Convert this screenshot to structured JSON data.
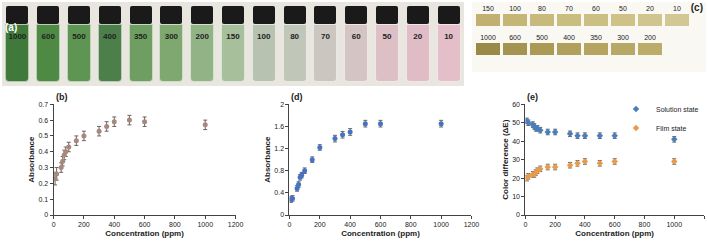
{
  "chart_data": [
    {
      "type": "scatter",
      "title": "(b)",
      "x_label": "Concentration (ppm)",
      "y_label": "Absorbance",
      "x": [
        10,
        20,
        50,
        60,
        70,
        80,
        100,
        150,
        200,
        300,
        350,
        400,
        500,
        600,
        1000
      ],
      "series": [
        {
          "name": "Absorbance",
          "color": "#a8887a",
          "marker": "circle",
          "values": [
            0.23,
            0.26,
            0.3,
            0.34,
            0.38,
            0.4,
            0.43,
            0.47,
            0.5,
            0.53,
            0.56,
            0.59,
            0.6,
            0.59,
            0.57
          ],
          "error": [
            0.04,
            0.04,
            0.03,
            0.03,
            0.03,
            0.03,
            0.03,
            0.03,
            0.03,
            0.03,
            0.03,
            0.03,
            0.03,
            0.03,
            0.03
          ]
        }
      ],
      "xlim": [
        0,
        1200
      ],
      "xticks": [
        0,
        200,
        400,
        600,
        800,
        1000,
        1200
      ],
      "ylim": [
        0,
        0.7
      ],
      "yticks": [
        0,
        0.1,
        0.2,
        0.3,
        0.4,
        0.5,
        0.6,
        0.7
      ],
      "grid": false
    },
    {
      "type": "scatter",
      "title": "(d)",
      "x_label": "Concentration (ppm)",
      "y_label": "Absorbance",
      "x": [
        10,
        20,
        50,
        60,
        70,
        80,
        100,
        150,
        200,
        300,
        350,
        400,
        500,
        600,
        1000
      ],
      "series": [
        {
          "name": "Absorbance",
          "color": "#4472c4",
          "marker": "circle",
          "values": [
            0.28,
            0.3,
            0.48,
            0.55,
            0.68,
            0.72,
            0.8,
            1.0,
            1.22,
            1.38,
            1.45,
            1.5,
            1.65,
            1.65,
            1.65
          ],
          "error": [
            0.05,
            0.05,
            0.05,
            0.05,
            0.05,
            0.05,
            0.05,
            0.05,
            0.05,
            0.06,
            0.06,
            0.06,
            0.06,
            0.06,
            0.06
          ]
        }
      ],
      "xlim": [
        0,
        1200
      ],
      "xticks": [
        0,
        200,
        400,
        600,
        800,
        1000,
        1200
      ],
      "ylim": [
        0,
        2
      ],
      "yticks": [
        0,
        0.4,
        0.8,
        1.2,
        1.6,
        2
      ],
      "grid": false
    },
    {
      "type": "scatter",
      "title": "(e)",
      "x_label": "Concentration (ppm)",
      "y_label": "Color difference (ΔE)",
      "x": [
        10,
        20,
        50,
        60,
        70,
        80,
        100,
        150,
        200,
        300,
        350,
        400,
        500,
        600,
        1000
      ],
      "series": [
        {
          "name": "Solution state",
          "color": "#4a7ebb",
          "marker": "diamond",
          "values": [
            51,
            50,
            49,
            48,
            47,
            47,
            46,
            45,
            45,
            44,
            43,
            43,
            43,
            43,
            41
          ],
          "error": [
            1.5,
            1.5,
            1.5,
            1.5,
            1.5,
            1.5,
            1.5,
            1.5,
            1.5,
            1.5,
            1.5,
            1.5,
            1.5,
            1.5,
            1.5
          ]
        },
        {
          "name": "Film state",
          "color": "#e69a4a",
          "marker": "diamond",
          "values": [
            20,
            21,
            22,
            22,
            23,
            24,
            25,
            26,
            26,
            27,
            28,
            29,
            28,
            29,
            29
          ],
          "error": [
            1.5,
            1.5,
            1.5,
            1.5,
            1.5,
            1.5,
            1.5,
            1.5,
            1.5,
            1.5,
            1.5,
            1.5,
            1.5,
            1.5,
            1.5
          ]
        }
      ],
      "xlim": [
        0,
        1200
      ],
      "xticks": [
        0,
        200,
        400,
        600,
        800,
        1000,
        1200
      ],
      "ylim": [
        0,
        60
      ],
      "yticks": [
        0,
        10,
        20,
        30,
        40,
        50,
        60
      ],
      "grid": false,
      "legend": "top right"
    }
  ],
  "photos": [
    {
      "label": "(a)",
      "items": [
        "1000",
        "600",
        "500",
        "400",
        "350",
        "300",
        "200",
        "150",
        "100",
        "80",
        "70",
        "60",
        "50",
        "20",
        "10"
      ],
      "colors": [
        "#3f7a3a",
        "#4f8a45",
        "#5e9552",
        "#4d7f4a",
        "#6f9e62",
        "#7fa870",
        "#92b386",
        "#a8bf9c",
        "#b8c2b0",
        "#c0c6b8",
        "#cbc6c0",
        "#d4c4c4",
        "#dcc0c6",
        "#e0bcc6",
        "#e4bfca"
      ]
    },
    {
      "label": "(c)",
      "rows": [
        [
          "150",
          "100",
          "80",
          "70",
          "60",
          "50",
          "20",
          "10"
        ],
        [
          "1000",
          "600",
          "500",
          "400",
          "350",
          "300",
          "200"
        ]
      ],
      "colors": [
        [
          "#c2b070",
          "#c6b676",
          "#c8b97c",
          "#cabd80",
          "#ccbf84",
          "#cec288",
          "#d0c58e",
          "#d2c894"
        ],
        [
          "#9a8a48",
          "#a49450",
          "#aa9a56",
          "#b0a05c",
          "#b4a460",
          "#b8a866",
          "#bcac6a"
        ]
      ]
    }
  ]
}
